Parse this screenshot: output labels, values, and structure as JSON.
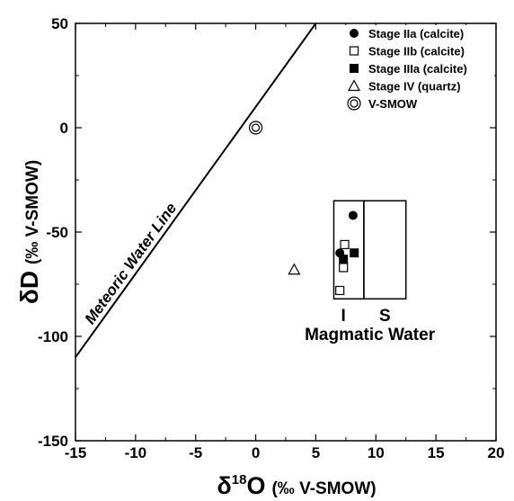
{
  "chart_data": {
    "type": "scatter",
    "xlabel_prefix": "δ",
    "xlabel_sup": "18",
    "xlabel_main": "O",
    "xlabel_unit": "(‰ V-SMOW)",
    "ylabel_main": "δD",
    "ylabel_unit": "(‰ V-SMOW)",
    "xlim": [
      -15,
      20
    ],
    "ylim": [
      -150,
      50
    ],
    "x_ticks": [
      -15,
      -10,
      -5,
      0,
      5,
      10,
      15,
      20
    ],
    "y_ticks": [
      -150,
      -100,
      -50,
      0,
      50
    ],
    "grid": false,
    "legend_position": "top-right",
    "series": [
      {
        "name": "Stage IIa (calcite)",
        "marker": "filled-circle",
        "points": [
          [
            8.1,
            -42
          ],
          [
            7.0,
            -60
          ]
        ]
      },
      {
        "name": "Stage IIb (calcite)",
        "marker": "open-square",
        "points": [
          [
            7.4,
            -56
          ],
          [
            7.3,
            -67
          ],
          [
            7.0,
            -78
          ]
        ]
      },
      {
        "name": "Stage IIIa (calcite)",
        "marker": "filled-square",
        "points": [
          [
            8.2,
            -60
          ],
          [
            7.3,
            -63
          ]
        ]
      },
      {
        "name": "Stage IV (quartz)",
        "marker": "open-triangle",
        "points": [
          [
            3.2,
            -68
          ]
        ]
      },
      {
        "name": "V-SMOW",
        "marker": "double-circle",
        "points": [
          [
            0,
            0
          ]
        ]
      }
    ],
    "lines": [
      {
        "name": "Meteoric Water Line",
        "slope": 8,
        "intercept": 10
      }
    ],
    "regions": [
      {
        "label": "I",
        "x": [
          6.5,
          9.0
        ],
        "y": [
          -82,
          -35
        ]
      },
      {
        "label": "S",
        "x": [
          9.0,
          12.5
        ],
        "y": [
          -82,
          -35
        ]
      }
    ],
    "annotations": {
      "magmatic_water": "Magmatic Water"
    }
  }
}
